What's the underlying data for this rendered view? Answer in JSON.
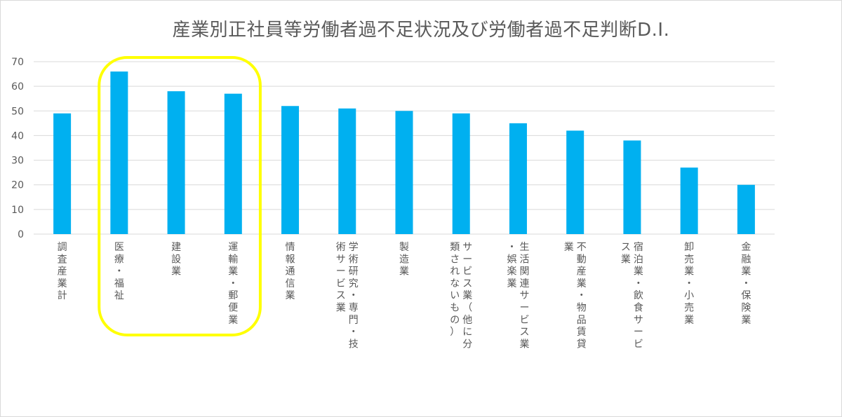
{
  "chart_data": {
    "type": "bar",
    "title": "産業別正社員等労働者過不足状況及び労働者過不足判断D.I.",
    "xlabel": "",
    "ylabel": "",
    "ylim": [
      0,
      70
    ],
    "yticks": [
      0,
      10,
      20,
      30,
      40,
      50,
      60,
      70
    ],
    "grid": true,
    "legend": "none",
    "categories": [
      [
        "調",
        "査",
        "産",
        "業",
        "計"
      ],
      [
        "医",
        "療",
        "・",
        "福",
        "祉"
      ],
      [
        "建",
        "設",
        "業"
      ],
      [
        "運",
        "輸",
        "業",
        "・",
        "郵",
        "便",
        "業"
      ],
      [
        "情",
        "報",
        "通",
        "信",
        "業"
      ],
      [
        "学",
        "術",
        "研",
        "究",
        "・",
        "専",
        "門",
        "・",
        "技",
        "術",
        "サ",
        "ー",
        "ビ",
        "ス",
        "業"
      ],
      [
        "製",
        "造",
        "業"
      ],
      [
        "サ",
        "ー",
        "ビ",
        "ス",
        "業",
        "（",
        "他",
        "に",
        "分",
        "類",
        "さ",
        "れ",
        "な",
        "い",
        "も",
        "の",
        "）"
      ],
      [
        "生",
        "活",
        "関",
        "連",
        "サ",
        "ー",
        "ビ",
        "ス",
        "業",
        "・",
        "娯",
        "楽",
        "業"
      ],
      [
        "不",
        "動",
        "産",
        "業",
        "・",
        "物",
        "品",
        "賃",
        "貸",
        "業"
      ],
      [
        "宿",
        "泊",
        "業",
        "・",
        "飲",
        "食",
        "サ",
        "ー",
        "ビ",
        "ス",
        "業"
      ],
      [
        "卸",
        "売",
        "業",
        "・",
        "小",
        "売",
        "業"
      ],
      [
        "金",
        "融",
        "業",
        "・",
        "保",
        "険",
        "業"
      ]
    ],
    "values": [
      49,
      66,
      58,
      57,
      52,
      51,
      50,
      49,
      45,
      42,
      38,
      27,
      20
    ],
    "bar_color": "#00b0f0",
    "highlight": {
      "categories": [
        1,
        2,
        3
      ],
      "color": "#ffff00",
      "shape": "rounded-rectangle"
    },
    "gridline_color": "#d9d9d9"
  }
}
